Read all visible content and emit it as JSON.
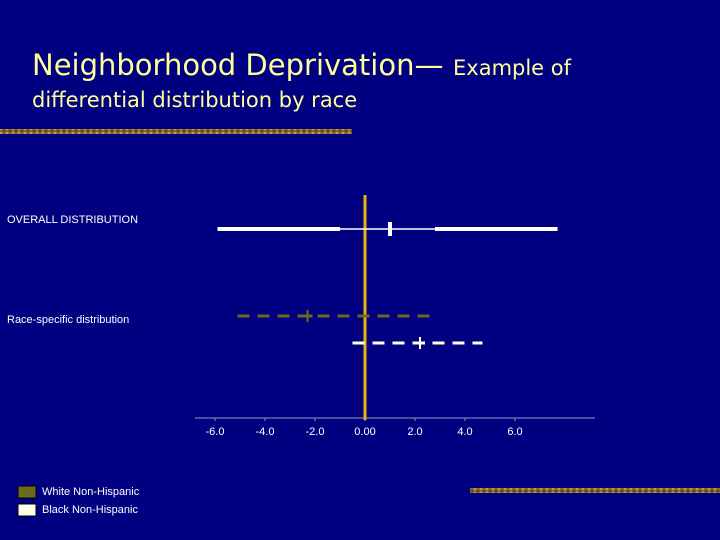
{
  "chart_data": {
    "type": "range",
    "title": "Neighborhood Deprivation—",
    "subtitle": [
      "Example of",
      "differential distribution by race"
    ],
    "row_labels": [
      "OVERALL DISTRIBUTION",
      "Race-specific distribution"
    ],
    "overall": {
      "color": "#ffffff",
      "values": [
        -5.9,
        -1.0,
        1.0,
        2.8,
        7.7
      ]
    },
    "series": [
      {
        "name": "White Non-Hispanic",
        "color": "#6b6b1e",
        "values": [
          -5.1,
          -2.3,
          2.8
        ]
      },
      {
        "name": "Black Non-Hispanic",
        "color": "#ffffe8",
        "values": [
          -0.5,
          2.2,
          4.7
        ]
      }
    ],
    "reference_line": 0,
    "reference_color": "#e8b400",
    "xlim": [
      -6.8,
      9.2
    ],
    "xticks": [
      {
        "value": -6,
        "label": "-6.0"
      },
      {
        "value": -4,
        "label": "-4.0"
      },
      {
        "value": -2,
        "label": "-2.0"
      },
      {
        "value": 0,
        "label": "0.00"
      },
      {
        "value": 2,
        "label": "2.0"
      },
      {
        "value": 4,
        "label": "4.0"
      },
      {
        "value": 6,
        "label": "6.0"
      }
    ]
  }
}
